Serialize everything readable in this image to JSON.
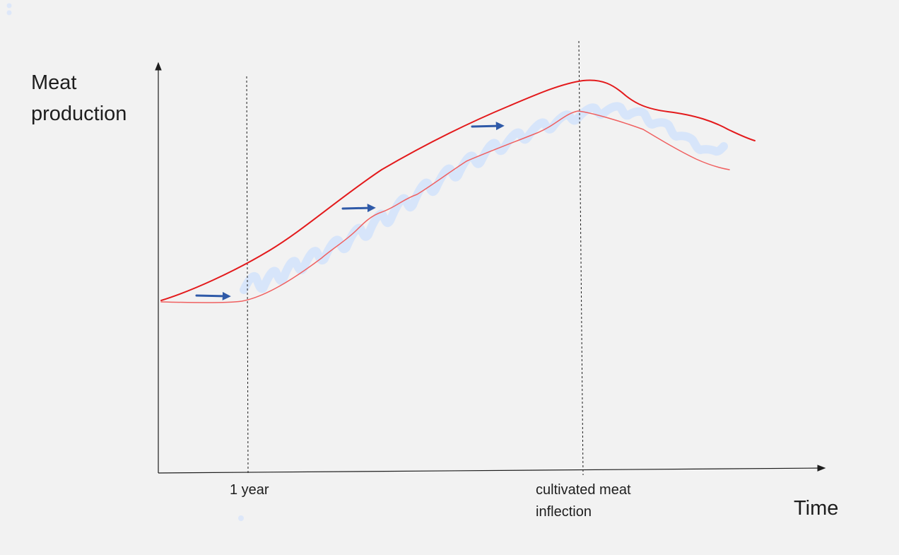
{
  "diagram": {
    "y_axis_label_line1": "Meat",
    "y_axis_label_line2": "production",
    "x_axis_label": "Time",
    "marker_1_label": "1 year",
    "marker_2_label_line1": "cultivated meat",
    "marker_2_label_line2": "inflection",
    "colors": {
      "upper_curve": "#e31a1c",
      "lower_curve": "#f06060",
      "highlight_band": "#d4e3fb",
      "arrows": "#2f5aa8",
      "axes": "#1e1e1e"
    }
  }
}
